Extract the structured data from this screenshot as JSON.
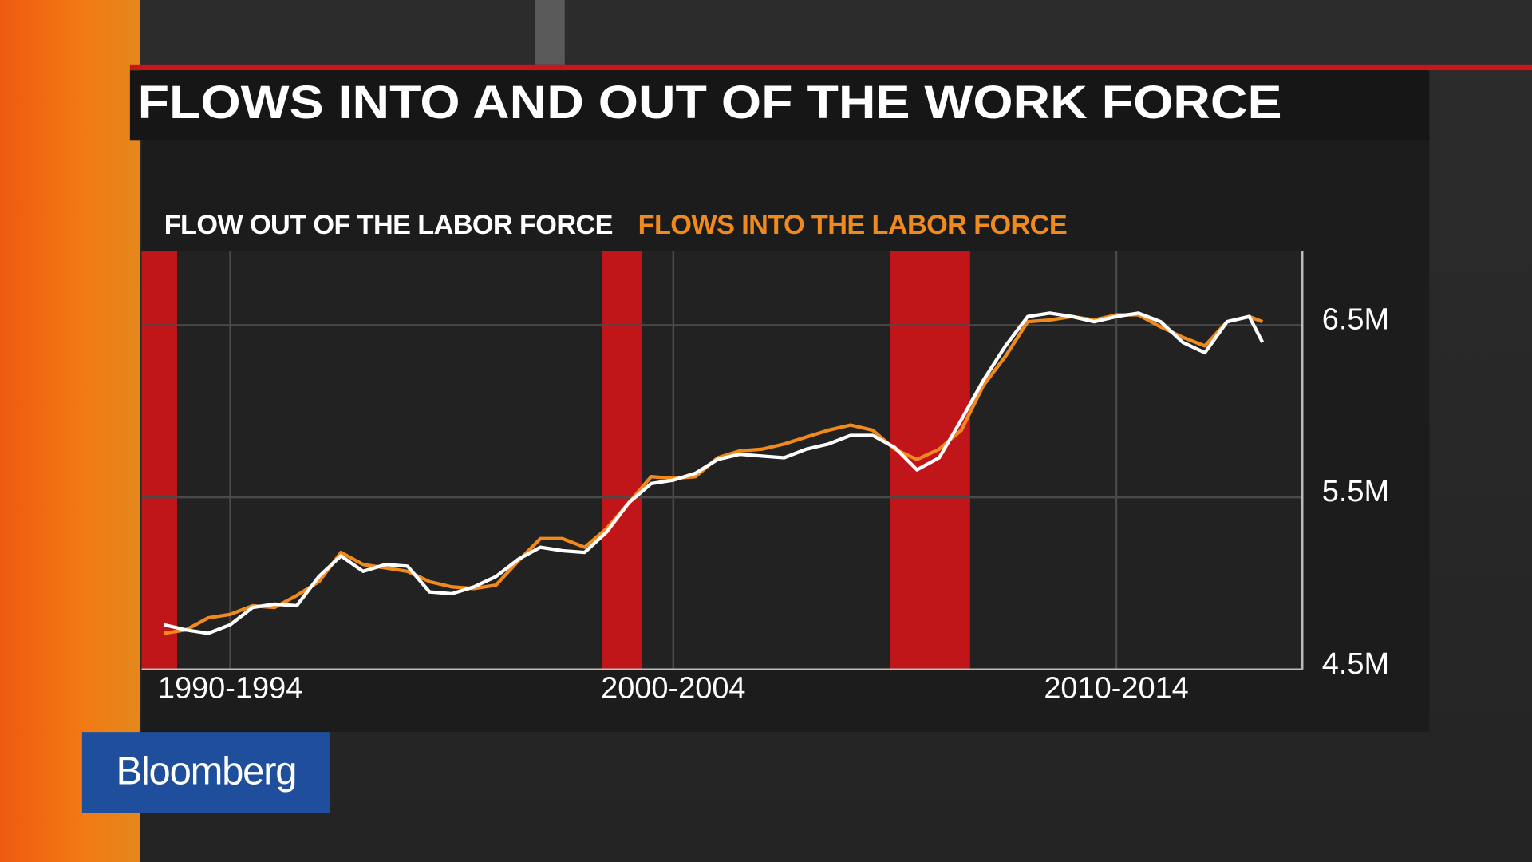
{
  "logo": "Bloomberg",
  "chart_data": {
    "type": "line",
    "title": "FLOWS INTO AND OUT OF THE WORK FORCE",
    "x": [
      1991,
      1991.5,
      1992,
      1992.5,
      1993,
      1993.5,
      1994,
      1994.5,
      1995,
      1995.5,
      1996,
      1996.5,
      1997,
      1997.5,
      1998,
      1998.5,
      1999,
      1999.5,
      2000,
      2000.5,
      2001,
      2001.5,
      2002,
      2002.5,
      2003,
      2003.5,
      2004,
      2004.5,
      2005,
      2005.5,
      2006,
      2006.5,
      2007,
      2007.5,
      2008,
      2008.5,
      2009,
      2009.5,
      2010,
      2010.5,
      2011,
      2011.5,
      2012,
      2012.5,
      2013,
      2013.5,
      2014,
      2014.5,
      2015,
      2015.5,
      2015.8
    ],
    "series": [
      {
        "name": "FLOW OUT OF THE LABOR FORCE",
        "color": "#ffffff",
        "values": [
          4.76,
          4.73,
          4.71,
          4.76,
          4.86,
          4.88,
          4.87,
          5.04,
          5.16,
          5.07,
          5.11,
          5.1,
          4.95,
          4.94,
          4.98,
          5.04,
          5.14,
          5.21,
          5.19,
          5.18,
          5.3,
          5.47,
          5.58,
          5.6,
          5.64,
          5.72,
          5.75,
          5.74,
          5.73,
          5.78,
          5.81,
          5.86,
          5.86,
          5.79,
          5.66,
          5.73,
          5.95,
          6.18,
          6.38,
          6.55,
          6.57,
          6.55,
          6.52,
          6.55,
          6.57,
          6.52,
          6.4,
          6.34,
          6.52,
          6.55,
          6.4
        ]
      },
      {
        "name": "FLOWS INTO THE LABOR FORCE",
        "color": "#f08a1c",
        "values": [
          4.71,
          4.73,
          4.8,
          4.82,
          4.87,
          4.86,
          4.93,
          5.01,
          5.18,
          5.11,
          5.09,
          5.07,
          5.01,
          4.98,
          4.97,
          4.99,
          5.13,
          5.26,
          5.26,
          5.21,
          5.32,
          5.47,
          5.62,
          5.61,
          5.62,
          5.73,
          5.77,
          5.78,
          5.81,
          5.85,
          5.89,
          5.92,
          5.89,
          5.78,
          5.72,
          5.78,
          5.89,
          6.15,
          6.32,
          6.52,
          6.53,
          6.55,
          6.53,
          6.56,
          6.56,
          6.49,
          6.43,
          6.38,
          6.52,
          6.55,
          6.52
        ]
      }
    ],
    "recessions": [
      [
        1990.5,
        1991.3
      ],
      [
        2000.9,
        2001.8
      ],
      [
        2007.4,
        2009.2
      ]
    ],
    "recession_color": "#c0161a",
    "xlim": [
      1990.5,
      2016.7
    ],
    "xticks": [
      {
        "value": 1992.5,
        "label": "1990-1994"
      },
      {
        "value": 2002.5,
        "label": "2000-2004"
      },
      {
        "value": 2012.5,
        "label": "2010-2014"
      }
    ],
    "ylim": [
      4.5,
      6.93
    ],
    "yticks": [
      {
        "value": 4.5,
        "label": "4.5M"
      },
      {
        "value": 5.5,
        "label": "5.5M"
      },
      {
        "value": 6.5,
        "label": "6.5M"
      }
    ],
    "grid": true
  }
}
